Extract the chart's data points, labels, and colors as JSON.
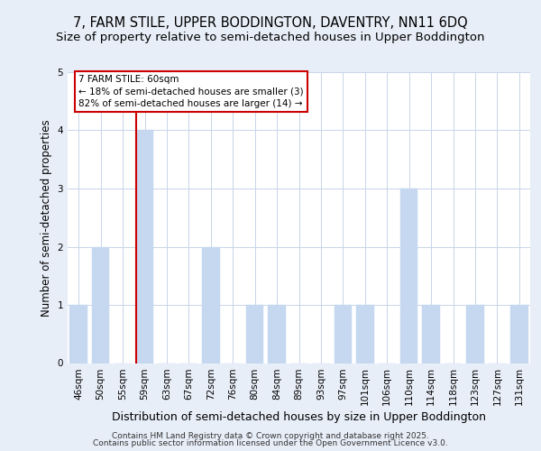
{
  "title_line1": "7, FARM STILE, UPPER BODDINGTON, DAVENTRY, NN11 6DQ",
  "title_line2": "Size of property relative to semi-detached houses in Upper Boddington",
  "xlabel": "Distribution of semi-detached houses by size in Upper Boddington",
  "ylabel": "Number of semi-detached properties",
  "categories": [
    "46sqm",
    "50sqm",
    "55sqm",
    "59sqm",
    "63sqm",
    "67sqm",
    "72sqm",
    "76sqm",
    "80sqm",
    "84sqm",
    "89sqm",
    "93sqm",
    "97sqm",
    "101sqm",
    "106sqm",
    "110sqm",
    "114sqm",
    "118sqm",
    "123sqm",
    "127sqm",
    "131sqm"
  ],
  "values": [
    1,
    2,
    0,
    4,
    0,
    0,
    2,
    0,
    1,
    1,
    0,
    0,
    1,
    1,
    0,
    3,
    1,
    0,
    1,
    0,
    1
  ],
  "bar_color": "#c5d8f0",
  "bar_edgecolor": "#c5d8f0",
  "highlight_index": 3,
  "highlight_color": "#cc0000",
  "ylim": [
    0,
    5
  ],
  "yticks": [
    0,
    1,
    2,
    3,
    4,
    5
  ],
  "annotation_title": "7 FARM STILE: 60sqm",
  "annotation_line1": "← 18% of semi-detached houses are smaller (3)",
  "annotation_line2": "82% of semi-detached houses are larger (14) →",
  "footer_line1": "Contains HM Land Registry data © Crown copyright and database right 2025.",
  "footer_line2": "Contains public sector information licensed under the Open Government Licence v3.0.",
  "background_color": "#e8eef8",
  "plot_bg_color": "#ffffff",
  "grid_color": "#c8d4e8",
  "title_fontsize": 10.5,
  "subtitle_fontsize": 9.5,
  "tick_fontsize": 7.5,
  "ylabel_fontsize": 8.5,
  "xlabel_fontsize": 9,
  "footer_fontsize": 6.5,
  "annotation_fontsize": 7.5
}
